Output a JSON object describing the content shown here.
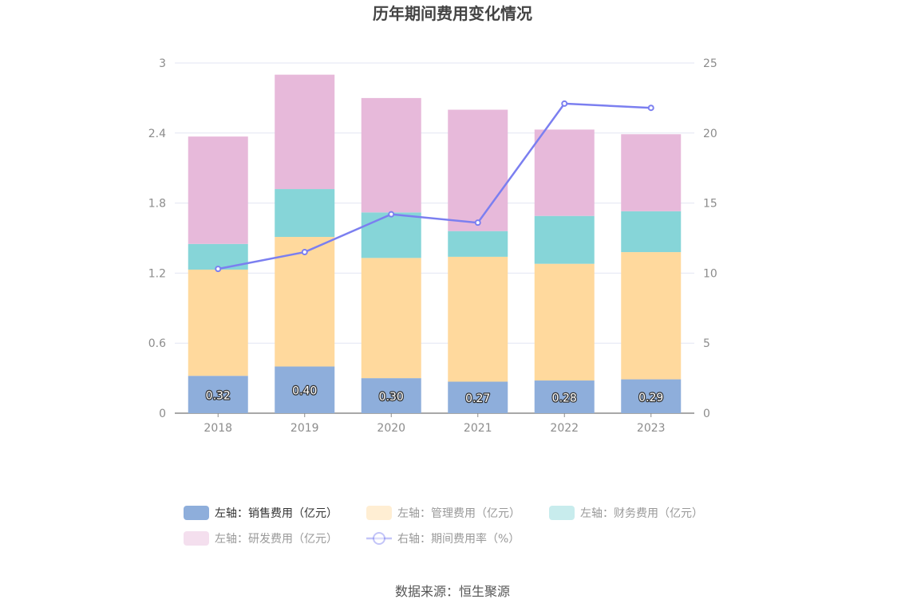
{
  "chart_data": {
    "type": "bar",
    "stacked": true,
    "title": "历年期间费用变化情况",
    "categories": [
      "2018",
      "2019",
      "2020",
      "2021",
      "2022",
      "2023"
    ],
    "left_axis": {
      "min": 0,
      "max": 3,
      "ticks": [
        "0",
        "0.6",
        "1.2",
        "1.8",
        "2.4",
        "3"
      ]
    },
    "right_axis": {
      "min": 0,
      "max": 25,
      "ticks": [
        "0",
        "5",
        "10",
        "15",
        "20",
        "25"
      ]
    },
    "series": [
      {
        "name": "左轴：销售费用（亿元）",
        "axis": "left",
        "type": "bar",
        "color": "#8eaedb",
        "values": [
          0.32,
          0.4,
          0.3,
          0.27,
          0.28,
          0.29
        ],
        "labels": [
          "0.32",
          "0.40",
          "0.30",
          "0.27",
          "0.28",
          "0.29"
        ]
      },
      {
        "name": "左轴：管理费用（亿元）",
        "axis": "left",
        "type": "bar",
        "color": "#ffd99d",
        "values": [
          0.91,
          1.11,
          1.03,
          1.07,
          1.0,
          1.09
        ]
      },
      {
        "name": "左轴：财务费用（亿元）",
        "axis": "left",
        "type": "bar",
        "color": "#86d5d8",
        "values": [
          0.22,
          0.41,
          0.39,
          0.22,
          0.41,
          0.35
        ]
      },
      {
        "name": "左轴：研发费用（亿元）",
        "axis": "left",
        "type": "bar",
        "color": "#e7b9da",
        "values": [
          0.92,
          0.98,
          0.98,
          1.04,
          0.74,
          0.66
        ]
      },
      {
        "name": "右轴：期间费用率（%）",
        "axis": "right",
        "type": "line",
        "color": "#7b7ff0",
        "values": [
          10.3,
          11.5,
          14.2,
          13.6,
          22.1,
          21.8
        ]
      }
    ],
    "grid": true,
    "legend_position": "bottom"
  },
  "source": "数据来源：恒生聚源"
}
